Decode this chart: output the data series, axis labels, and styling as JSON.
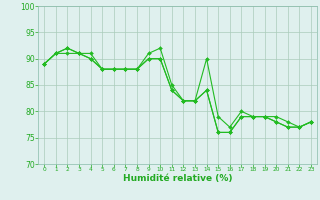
{
  "series": [
    {
      "x": [
        0,
        1,
        2,
        3,
        4,
        5,
        6,
        7,
        8,
        9,
        10,
        11,
        12,
        13,
        14,
        15,
        16,
        17,
        18,
        19,
        20,
        21,
        22,
        23
      ],
      "y": [
        89,
        91,
        92,
        91,
        91,
        88,
        88,
        88,
        88,
        90,
        90,
        84,
        82,
        82,
        84,
        76,
        76,
        79,
        79,
        79,
        78,
        77,
        77,
        78
      ]
    },
    {
      "x": [
        0,
        1,
        2,
        3,
        4,
        5,
        6,
        7,
        8,
        9,
        10,
        11,
        12,
        13,
        14,
        15,
        16,
        17,
        18,
        19,
        20,
        21,
        22,
        23
      ],
      "y": [
        89,
        91,
        92,
        91,
        90,
        88,
        88,
        88,
        88,
        91,
        92,
        85,
        82,
        82,
        90,
        79,
        77,
        80,
        79,
        79,
        79,
        78,
        77,
        78
      ]
    },
    {
      "x": [
        0,
        1,
        2,
        3,
        4,
        5,
        6,
        7,
        8,
        9,
        10,
        11,
        12,
        13,
        14,
        15,
        16,
        17,
        18,
        19,
        20,
        21,
        22,
        23
      ],
      "y": [
        89,
        91,
        91,
        91,
        90,
        88,
        88,
        88,
        88,
        90,
        90,
        84,
        82,
        82,
        84,
        76,
        76,
        79,
        79,
        79,
        78,
        77,
        77,
        78
      ]
    }
  ],
  "xlabel": "Humidité relative (%)",
  "xlim": [
    -0.5,
    23.5
  ],
  "ylim": [
    70,
    100
  ],
  "yticks": [
    70,
    75,
    80,
    85,
    90,
    95,
    100
  ],
  "xticks": [
    0,
    1,
    2,
    3,
    4,
    5,
    6,
    7,
    8,
    9,
    10,
    11,
    12,
    13,
    14,
    15,
    16,
    17,
    18,
    19,
    20,
    21,
    22,
    23
  ],
  "bg_color": "#dff0ee",
  "grid_color": "#aaccbb",
  "line_color": "#22bb22",
  "tick_color": "#22aa22",
  "xlabel_color": "#22aa22",
  "spine_color": "#88bbaa"
}
